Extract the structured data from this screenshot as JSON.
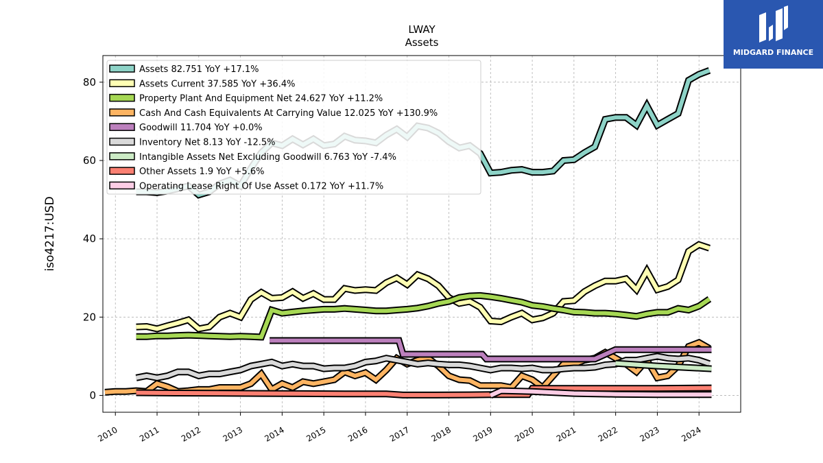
{
  "chart_data": {
    "type": "line",
    "title": "LWAY",
    "subtitle": "Assets",
    "ylabel": "iso4217:USD",
    "xlabel": "",
    "xlim": [
      2009.7,
      2025.0
    ],
    "ylim": [
      -4.3,
      86.8
    ],
    "yticks": [
      0,
      20,
      40,
      60,
      80
    ],
    "xticks": [
      "2010",
      "2011",
      "2012",
      "2013",
      "2014",
      "2015",
      "2016",
      "2017",
      "2018",
      "2019",
      "2020",
      "2021",
      "2022",
      "2023",
      "2024"
    ],
    "grid": true,
    "legend_position": "upper-left",
    "series": [
      {
        "name": "Assets  82.751 YoY +17.1%",
        "color": "#8dd3c7",
        "x": [
          2010.5,
          2010.75,
          2011.0,
          2011.25,
          2011.5,
          2011.75,
          2012.0,
          2012.25,
          2012.5,
          2012.75,
          2013.0,
          2013.25,
          2013.5,
          2013.75,
          2014.0,
          2014.25,
          2014.5,
          2014.75,
          2015.0,
          2015.25,
          2015.5,
          2015.75,
          2016.0,
          2016.25,
          2016.5,
          2016.75,
          2017.0,
          2017.25,
          2017.5,
          2017.75,
          2018.0,
          2018.25,
          2018.5,
          2018.75,
          2019.0,
          2019.25,
          2019.5,
          2019.75,
          2020.0,
          2020.25,
          2020.5,
          2020.75,
          2021.0,
          2021.25,
          2021.5,
          2021.75,
          2022.0,
          2022.25,
          2022.5,
          2022.75,
          2023.0,
          2023.25,
          2023.5,
          2023.75,
          2024.0,
          2024.25
        ],
        "values": [
          52.0,
          52.0,
          51.8,
          52.2,
          52.8,
          53.5,
          51.2,
          52.0,
          54.0,
          55.0,
          53.5,
          58.0,
          62.0,
          64.5,
          63.8,
          65.5,
          64.0,
          65.5,
          63.8,
          64.2,
          66.2,
          65.2,
          65.0,
          64.5,
          66.5,
          68.0,
          66.0,
          68.8,
          68.3,
          67.0,
          64.8,
          63.2,
          63.8,
          61.8,
          56.8,
          57.0,
          57.5,
          57.7,
          57.0,
          57.0,
          57.3,
          60.0,
          60.2,
          62.0,
          63.5,
          70.5,
          71.0,
          71.0,
          69.0,
          74.0,
          69.0,
          70.5,
          72.0,
          80.5,
          82.0,
          83.0
        ]
      },
      {
        "name": "Assets Current  37.585 YoY +36.4%",
        "color": "#ffffb3",
        "x": [
          2010.5,
          2010.75,
          2011.0,
          2011.25,
          2011.5,
          2011.75,
          2012.0,
          2012.25,
          2012.5,
          2012.75,
          2013.0,
          2013.25,
          2013.5,
          2013.75,
          2014.0,
          2014.25,
          2014.5,
          2014.75,
          2015.0,
          2015.25,
          2015.5,
          2015.75,
          2016.0,
          2016.25,
          2016.5,
          2016.75,
          2017.0,
          2017.25,
          2017.5,
          2017.75,
          2018.0,
          2018.25,
          2018.5,
          2018.75,
          2019.0,
          2019.25,
          2019.5,
          2019.75,
          2020.0,
          2020.25,
          2020.5,
          2020.75,
          2021.0,
          2021.25,
          2021.5,
          2021.75,
          2022.0,
          2022.25,
          2022.5,
          2022.75,
          2023.0,
          2023.25,
          2023.5,
          2023.75,
          2024.0,
          2024.25
        ],
        "values": [
          17.5,
          17.6,
          17.0,
          17.8,
          18.5,
          19.3,
          17.0,
          17.5,
          20.0,
          21.0,
          20.0,
          24.5,
          26.3,
          24.8,
          25.0,
          26.5,
          24.8,
          26.0,
          24.5,
          24.5,
          27.3,
          26.8,
          27.0,
          26.8,
          28.8,
          30.0,
          28.3,
          30.8,
          29.8,
          28.0,
          25.0,
          23.5,
          24.0,
          22.5,
          19.0,
          18.8,
          20.0,
          21.0,
          19.3,
          19.8,
          21.0,
          24.0,
          24.2,
          26.5,
          28.0,
          29.2,
          29.2,
          29.8,
          27.0,
          31.8,
          27.0,
          27.8,
          29.5,
          36.8,
          38.5,
          37.6
        ]
      },
      {
        "name": "Property Plant And Equipment Net  24.627 YoY +11.2%",
        "color": "#a6d854",
        "x": [
          2010.5,
          2010.75,
          2011.0,
          2011.25,
          2011.5,
          2011.75,
          2012.0,
          2012.25,
          2012.5,
          2012.75,
          2013.0,
          2013.25,
          2013.5,
          2013.75,
          2014.0,
          2014.25,
          2014.5,
          2014.75,
          2015.0,
          2015.25,
          2015.5,
          2015.75,
          2016.0,
          2016.25,
          2016.5,
          2016.75,
          2017.0,
          2017.25,
          2017.5,
          2017.75,
          2018.0,
          2018.25,
          2018.5,
          2018.75,
          2019.0,
          2019.25,
          2019.5,
          2019.75,
          2020.0,
          2020.25,
          2020.5,
          2020.75,
          2021.0,
          2021.25,
          2021.5,
          2021.75,
          2022.0,
          2022.25,
          2022.5,
          2022.75,
          2023.0,
          2023.25,
          2023.5,
          2023.75,
          2024.0,
          2024.25
        ],
        "values": [
          15.0,
          15.0,
          15.2,
          15.2,
          15.3,
          15.4,
          15.3,
          15.2,
          15.1,
          15.0,
          15.1,
          15.0,
          14.9,
          21.8,
          21.0,
          21.3,
          21.6,
          21.8,
          22.0,
          22.0,
          22.2,
          22.0,
          21.8,
          21.6,
          21.6,
          21.8,
          22.0,
          22.3,
          22.8,
          23.5,
          24.0,
          25.0,
          25.4,
          25.5,
          25.2,
          24.8,
          24.3,
          23.8,
          23.0,
          22.7,
          22.2,
          21.8,
          21.3,
          21.2,
          21.0,
          21.0,
          20.8,
          20.5,
          20.2,
          20.8,
          21.2,
          21.2,
          22.2,
          21.8,
          22.8,
          24.6
        ]
      },
      {
        "name": "Cash And Cash Equivalents At Carrying Value  12.025 YoY +130.9%",
        "color": "#fdb462",
        "x": [
          2009.75,
          2010.0,
          2010.25,
          2010.5,
          2010.75,
          2011.0,
          2011.25,
          2011.5,
          2011.75,
          2012.0,
          2012.25,
          2012.5,
          2012.75,
          2013.0,
          2013.25,
          2013.5,
          2013.75,
          2014.0,
          2014.25,
          2014.5,
          2014.75,
          2015.0,
          2015.25,
          2015.5,
          2015.75,
          2016.0,
          2016.25,
          2016.5,
          2016.75,
          2017.0,
          2017.25,
          2017.5,
          2017.75,
          2018.0,
          2018.25,
          2018.5,
          2018.75,
          2019.0,
          2019.25,
          2019.5,
          2019.75,
          2020.0,
          2020.25,
          2020.5,
          2020.75,
          2021.0,
          2021.25,
          2021.5,
          2021.75,
          2022.0,
          2022.25,
          2022.5,
          2022.75,
          2023.0,
          2023.25,
          2023.5,
          2023.75,
          2024.0,
          2024.25
        ],
        "values": [
          0.8,
          1.0,
          1.0,
          1.2,
          1.0,
          3.0,
          2.2,
          1.0,
          1.2,
          1.5,
          1.5,
          2.0,
          2.0,
          2.0,
          3.0,
          5.5,
          1.5,
          3.0,
          2.0,
          3.5,
          3.0,
          3.5,
          4.0,
          6.0,
          5.0,
          5.8,
          4.0,
          6.5,
          9.5,
          8.0,
          9.0,
          9.5,
          7.5,
          5.0,
          4.0,
          3.8,
          2.5,
          2.5,
          2.5,
          2.0,
          5.0,
          4.0,
          2.0,
          5.0,
          8.0,
          8.0,
          9.0,
          9.5,
          11.0,
          9.5,
          8.0,
          6.0,
          9.0,
          4.5,
          5.0,
          7.5,
          12.5,
          13.5,
          12.0
        ]
      },
      {
        "name": "Goodwill  11.704 YoY +0.0%",
        "color": "#bc80bd",
        "x": [
          2013.7,
          2016.8,
          2016.9,
          2018.8,
          2018.9,
          2021.5,
          2022.0,
          2024.3
        ],
        "values": [
          14.0,
          14.0,
          10.5,
          10.5,
          9.3,
          9.3,
          11.7,
          11.7
        ]
      },
      {
        "name": "Inventory Net  8.13 YoY -12.5%",
        "color": "#d9d9d9",
        "x": [
          2010.5,
          2010.75,
          2011.0,
          2011.25,
          2011.5,
          2011.75,
          2012.0,
          2012.25,
          2012.5,
          2012.75,
          2013.0,
          2013.25,
          2013.5,
          2013.75,
          2014.0,
          2014.25,
          2014.5,
          2014.75,
          2015.0,
          2015.25,
          2015.5,
          2015.75,
          2016.0,
          2016.25,
          2016.5,
          2016.75,
          2017.0,
          2017.25,
          2017.5,
          2017.75,
          2018.0,
          2018.25,
          2018.5,
          2018.75,
          2019.0,
          2019.25,
          2019.5,
          2019.75,
          2020.0,
          2020.25,
          2020.5,
          2020.75,
          2021.0,
          2021.25,
          2021.5,
          2021.75,
          2022.0,
          2022.25,
          2022.5,
          2022.75,
          2023.0,
          2023.25,
          2023.5,
          2023.75,
          2024.0,
          2024.25
        ],
        "values": [
          4.5,
          5.0,
          4.5,
          5.0,
          6.0,
          6.0,
          5.0,
          5.5,
          5.5,
          6.0,
          6.5,
          7.5,
          8.0,
          8.5,
          7.5,
          8.0,
          7.5,
          7.5,
          6.8,
          7.0,
          7.0,
          7.5,
          8.5,
          8.8,
          9.5,
          9.0,
          8.5,
          8.0,
          8.3,
          8.0,
          7.8,
          7.8,
          7.5,
          7.0,
          6.5,
          7.0,
          7.0,
          6.8,
          7.0,
          6.5,
          6.5,
          6.8,
          7.0,
          7.0,
          7.2,
          7.8,
          8.0,
          9.0,
          9.0,
          9.5,
          10.0,
          9.5,
          9.3,
          9.5,
          9.0,
          8.1
        ]
      },
      {
        "name": "Intangible Assets Net Excluding Goodwill  6.763 YoY -7.4%",
        "color": "#ccebc5",
        "x": [
          2022.0,
          2023.0,
          2024.3
        ],
        "values": [
          8.2,
          7.5,
          6.8
        ]
      },
      {
        "name": "Other Assets  1.9 YoY +5.6%",
        "color": "#fb8072",
        "x": [
          2010.5,
          2011.5,
          2012.5,
          2013.5,
          2014.5,
          2015.5,
          2016.5,
          2016.9,
          2017.5,
          2018.5,
          2019.0,
          2019.9,
          2020.0,
          2021.0,
          2022.0,
          2023.0,
          2024.3
        ],
        "values": [
          0.7,
          0.6,
          0.55,
          0.5,
          0.45,
          0.4,
          0.4,
          0.1,
          0.1,
          0.15,
          0.2,
          0.2,
          1.8,
          1.8,
          1.8,
          1.8,
          1.9
        ]
      },
      {
        "name": "Operating Lease Right Of Use Asset  0.172 YoY +11.7%",
        "color": "#fccde5",
        "x": [
          2019.0,
          2019.25,
          2020.0,
          2021.0,
          2022.0,
          2023.0,
          2024.3
        ],
        "values": [
          0.0,
          1.2,
          1.0,
          0.5,
          0.3,
          0.2,
          0.2
        ]
      }
    ]
  },
  "logo": {
    "text": "MIDGARD FINANCE"
  }
}
